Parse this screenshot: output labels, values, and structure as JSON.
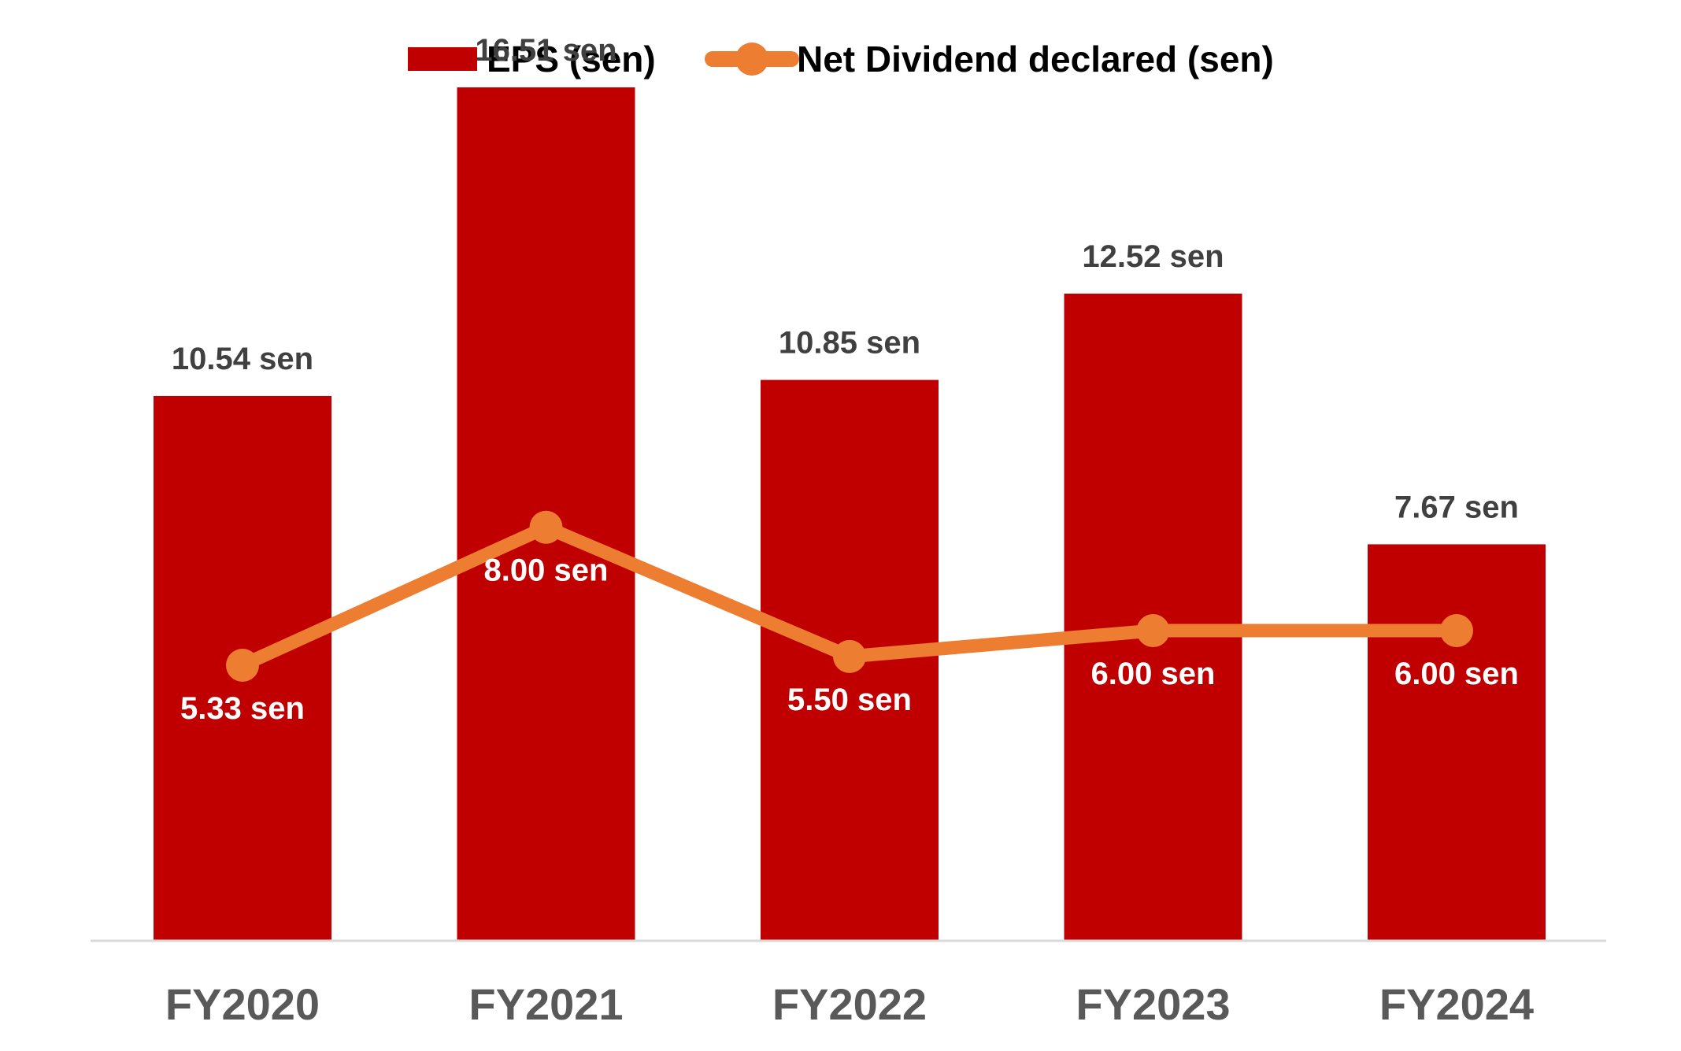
{
  "chart_data": {
    "type": "bar",
    "categories": [
      "FY2020",
      "FY2021",
      "FY2022",
      "FY2023",
      "FY2024"
    ],
    "series": [
      {
        "name": "EPS (sen)",
        "type": "bar",
        "values": [
          10.54,
          16.51,
          10.85,
          12.52,
          7.67
        ],
        "labels": [
          "10.54 sen",
          "16.51 sen",
          "10.85 sen",
          "12.52 sen",
          "7.67 sen"
        ],
        "color": "#C00000"
      },
      {
        "name": "Net Dividend declared (sen)",
        "type": "line",
        "values": [
          5.33,
          8.0,
          5.5,
          6.0,
          6.0
        ],
        "labels": [
          "5.33 sen",
          "8.00 sen",
          "5.50 sen",
          "6.00 sen",
          "6.00 sen"
        ],
        "color": "#ED7D31"
      }
    ],
    "title": "",
    "xlabel": "",
    "ylabel": "",
    "ylim": [
      0,
      18.2
    ],
    "grid": false,
    "legend_position": "top-center",
    "axis_color": "#D9D9D9"
  }
}
